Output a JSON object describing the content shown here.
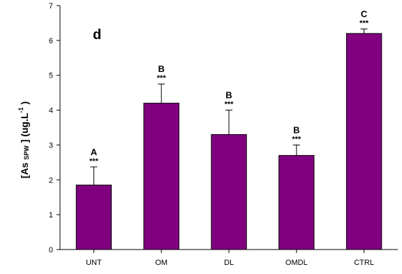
{
  "chart_data": {
    "type": "bar",
    "panel_label": "d",
    "ylabel": {
      "open": "[As ",
      "sub": "SPW",
      "mid": " ] (ug.L",
      "sup": "-1",
      "close": " )"
    },
    "categories": [
      "UNT",
      "OM",
      "DL",
      "OMDL",
      "CTRL"
    ],
    "values": [
      1.85,
      4.2,
      3.3,
      2.7,
      6.2
    ],
    "errors": [
      0.52,
      0.55,
      0.7,
      0.3,
      0.13
    ],
    "significance_letters": [
      "A",
      "B",
      "B",
      "B",
      "C"
    ],
    "significance_stars": [
      "***",
      "***",
      "***",
      "***",
      "***"
    ],
    "ylim": [
      0,
      7
    ],
    "yticks": [
      0,
      1,
      2,
      3,
      4,
      5,
      6,
      7
    ],
    "grid": false,
    "bar_color": "#800080"
  }
}
